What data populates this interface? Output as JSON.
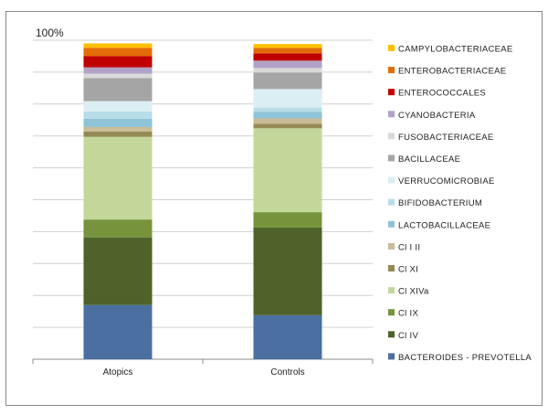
{
  "chart_data": {
    "type": "bar",
    "stacked": true,
    "title": "",
    "xlabel": "",
    "ylabel": "",
    "ylim": [
      0,
      100
    ],
    "ytick_labels": [
      "100%"
    ],
    "grid": true,
    "legend_position": "right",
    "categories": [
      "Atopics",
      "Controls"
    ],
    "series": [
      {
        "name": "BACTEROIDES - PREVOTELLA",
        "color": "#4a6fa0",
        "values": [
          17.0,
          13.8
        ]
      },
      {
        "name": "Cl IV",
        "color": "#4e622a",
        "values": [
          21.2,
          27.5
        ]
      },
      {
        "name": "Cl IX",
        "color": "#77933c",
        "values": [
          5.6,
          4.8
        ]
      },
      {
        "name": "Cl XIVa",
        "color": "#c4d79b",
        "values": [
          25.9,
          26.3
        ]
      },
      {
        "name": "Cl XI",
        "color": "#948a54",
        "values": [
          1.7,
          1.4
        ]
      },
      {
        "name": "Cl I II",
        "color": "#c9bc96",
        "values": [
          1.4,
          1.7
        ]
      },
      {
        "name": "LACTOBACILLACEAE",
        "color": "#8fc3d8",
        "values": [
          2.6,
          2.0
        ]
      },
      {
        "name": "BIFIDOBACTERIUM",
        "color": "#b7dde8",
        "values": [
          2.3,
          1.4
        ]
      },
      {
        "name": "VERRUCOMICROBIAE",
        "color": "#dbeef3",
        "values": [
          3.2,
          5.8
        ]
      },
      {
        "name": "BACILLACEAE",
        "color": "#a5a5a5",
        "values": [
          7.2,
          5.2
        ]
      },
      {
        "name": "FUSOBACTERIACEAE",
        "color": "#d9d9d9",
        "values": [
          1.4,
          1.4
        ]
      },
      {
        "name": "CYANOBACTERIA",
        "color": "#b3a2c7",
        "values": [
          2.0,
          2.3
        ]
      },
      {
        "name": "ENTEROCOCCALES",
        "color": "#c00000",
        "values": [
          3.5,
          2.3
        ]
      },
      {
        "name": "ENTEROBACTERIACEAE",
        "color": "#e36c09",
        "values": [
          2.6,
          1.7
        ]
      },
      {
        "name": "CAMPYLOBACTERIACEAE",
        "color": "#ffc000",
        "values": [
          1.4,
          1.2
        ]
      }
    ]
  }
}
